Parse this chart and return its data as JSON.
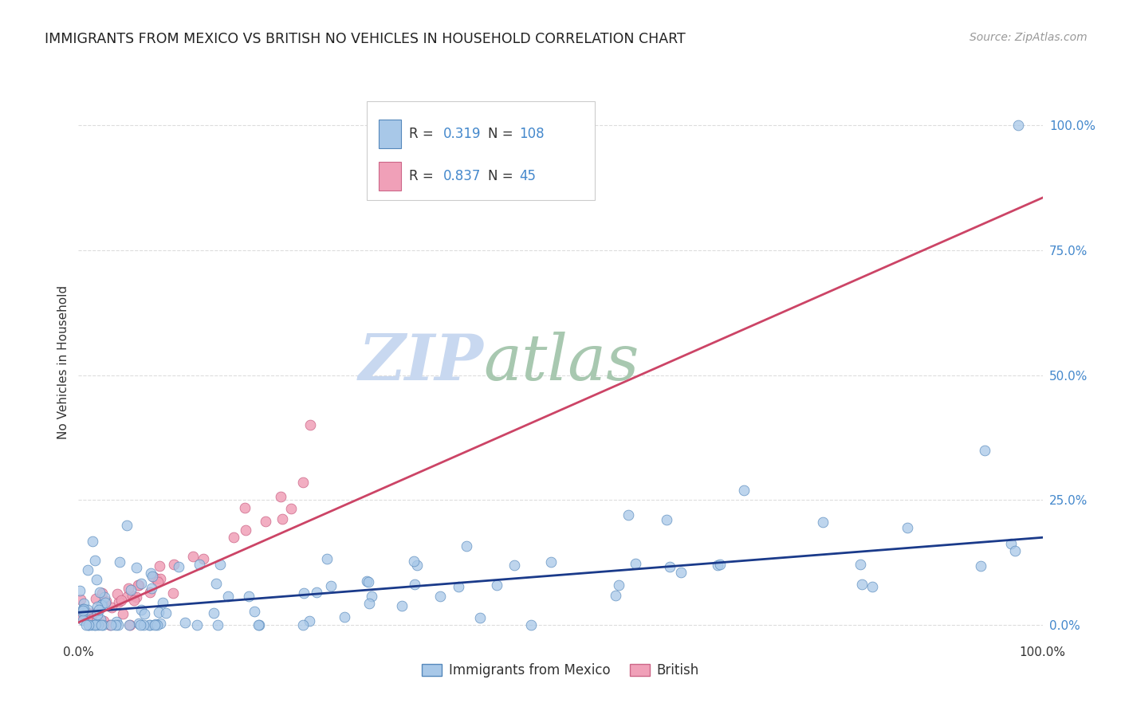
{
  "title": "IMMIGRANTS FROM MEXICO VS BRITISH NO VEHICLES IN HOUSEHOLD CORRELATION CHART",
  "source": "Source: ZipAtlas.com",
  "ylabel": "No Vehicles in Household",
  "ytick_values": [
    0,
    25,
    50,
    75,
    100
  ],
  "xlim": [
    0,
    100
  ],
  "ylim": [
    -3,
    108
  ],
  "legend_label1": "Immigrants from Mexico",
  "legend_label2": "British",
  "r1": 0.319,
  "n1": 108,
  "r2": 0.837,
  "n2": 45,
  "color_blue": "#a8c8e8",
  "color_blue_edge": "#5588bb",
  "color_pink": "#f0a0b8",
  "color_pink_edge": "#cc6688",
  "color_line_blue": "#1a3a8a",
  "color_line_pink": "#cc4466",
  "watermark_zip": "ZIP",
  "watermark_atlas": "atlas",
  "watermark_color_zip": "#c8d8f0",
  "watermark_color_atlas": "#a8c8b0",
  "background": "#ffffff",
  "grid_color": "#dddddd",
  "title_color": "#222222",
  "source_color": "#999999",
  "ytick_color": "#4488cc",
  "xtick_color": "#333333",
  "ylabel_color": "#333333"
}
